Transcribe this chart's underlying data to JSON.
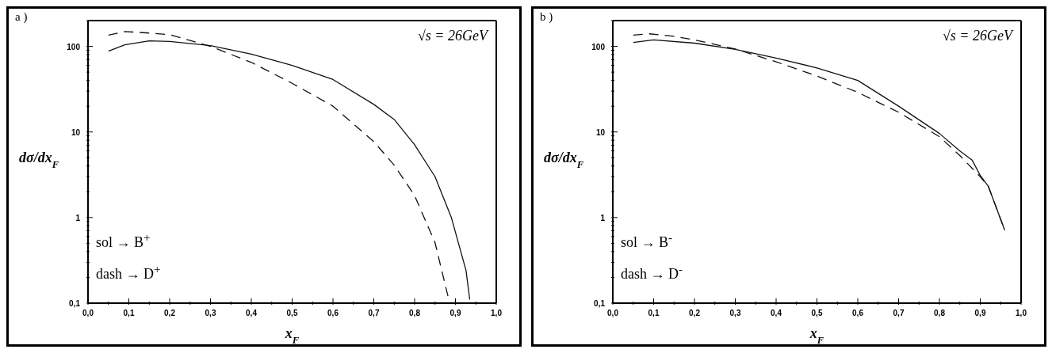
{
  "chart_data": [
    {
      "type": "line",
      "title": "a )",
      "xlabel": "x$_{F}$",
      "ylabel": "dσ/dx$_{F}$",
      "log": "y",
      "marker": "none",
      "xlim": [
        0,
        1
      ],
      "ylim": [
        0.1,
        200
      ],
      "xticks": [
        {
          "value": 0,
          "label": "0,0"
        },
        {
          "value": 0.05,
          "label": null
        },
        {
          "value": 0.1,
          "label": "0,1"
        },
        {
          "value": 0.15,
          "label": null
        },
        {
          "value": 0.2,
          "label": "0,2"
        },
        {
          "value": 0.25,
          "label": null
        },
        {
          "value": 0.3,
          "label": "0,3"
        },
        {
          "value": 0.35,
          "label": null
        },
        {
          "value": 0.4,
          "label": "0,4"
        },
        {
          "value": 0.45,
          "label": null
        },
        {
          "value": 0.5,
          "label": "0,5"
        },
        {
          "value": 0.55,
          "label": null
        },
        {
          "value": 0.6,
          "label": "0,6"
        },
        {
          "value": 0.65,
          "label": null
        },
        {
          "value": 0.7,
          "label": "0,7"
        },
        {
          "value": 0.75,
          "label": null
        },
        {
          "value": 0.8,
          "label": "0,8"
        },
        {
          "value": 0.85,
          "label": null
        },
        {
          "value": 0.9,
          "label": "0,9"
        },
        {
          "value": 0.95,
          "label": null
        },
        {
          "value": 1,
          "label": "1,0"
        }
      ],
      "yticks": [
        {
          "value": 0.1,
          "label": "0,1"
        },
        {
          "value": 0.2,
          "label": null
        },
        {
          "value": 0.3,
          "label": null
        },
        {
          "value": 0.4,
          "label": null
        },
        {
          "value": 0.5,
          "label": null
        },
        {
          "value": 0.6,
          "label": null
        },
        {
          "value": 0.7,
          "label": null
        },
        {
          "value": 0.8,
          "label": null
        },
        {
          "value": 0.9,
          "label": null
        },
        1,
        {
          "value": 2,
          "label": null
        },
        {
          "value": 3,
          "label": null
        },
        {
          "value": 4,
          "label": null
        },
        {
          "value": 5,
          "label": null
        },
        {
          "value": 6,
          "label": null
        },
        {
          "value": 7,
          "label": null
        },
        {
          "value": 8,
          "label": null
        },
        {
          "value": 9,
          "label": null
        },
        10,
        {
          "value": 20,
          "label": null
        },
        {
          "value": 30,
          "label": null
        },
        {
          "value": 40,
          "label": null
        },
        {
          "value": 50,
          "label": null
        },
        {
          "value": 60,
          "label": null
        },
        {
          "value": 70,
          "label": null
        },
        {
          "value": 80,
          "label": null
        },
        {
          "value": 90,
          "label": null
        },
        100,
        {
          "value": 200,
          "label": null
        }
      ],
      "annotations": [
        "√s = 26GeV",
        "sol → B$^{+}$",
        "dash → D$^{+}$"
      ],
      "series": [
        {
          "color": "#111111",
          "line_style": "solid",
          "x": [
            0.05,
            0.09,
            0.15,
            0.2,
            0.3,
            0.4,
            0.5,
            0.6,
            0.7,
            0.75,
            0.8,
            0.85,
            0.89,
            0.926,
            0.935
          ],
          "values": [
            88,
            104,
            116,
            114,
            102,
            81,
            60,
            41,
            21,
            14,
            7.1,
            3,
            1,
            0.24,
            0.11
          ]
        },
        {
          "color": "#111111",
          "line_style": "dashed",
          "x": [
            0.05,
            0.09,
            0.15,
            0.2,
            0.25,
            0.3,
            0.4,
            0.5,
            0.6,
            0.7,
            0.75,
            0.8,
            0.85,
            0.88,
            0.885
          ],
          "values": [
            135,
            149,
            143,
            137,
            117,
            100,
            65,
            37,
            20,
            7.7,
            4.1,
            1.8,
            0.51,
            0.13,
            0.104
          ]
        }
      ]
    },
    {
      "type": "line",
      "title": "b )",
      "xlabel": "x$_{F}$",
      "ylabel": "dσ/dx$_{F}$",
      "log": "y",
      "marker": "none",
      "xlim": [
        0,
        1
      ],
      "ylim": [
        0.1,
        200
      ],
      "xticks": [
        {
          "value": 0,
          "label": "0,0"
        },
        {
          "value": 0.05,
          "label": null
        },
        {
          "value": 0.1,
          "label": "0,1"
        },
        {
          "value": 0.15,
          "label": null
        },
        {
          "value": 0.2,
          "label": "0,2"
        },
        {
          "value": 0.25,
          "label": null
        },
        {
          "value": 0.3,
          "label": "0,3"
        },
        {
          "value": 0.35,
          "label": null
        },
        {
          "value": 0.4,
          "label": "0,4"
        },
        {
          "value": 0.45,
          "label": null
        },
        {
          "value": 0.5,
          "label": "0,5"
        },
        {
          "value": 0.55,
          "label": null
        },
        {
          "value": 0.6,
          "label": "0,6"
        },
        {
          "value": 0.65,
          "label": null
        },
        {
          "value": 0.7,
          "label": "0,7"
        },
        {
          "value": 0.75,
          "label": null
        },
        {
          "value": 0.8,
          "label": "0,8"
        },
        {
          "value": 0.85,
          "label": null
        },
        {
          "value": 0.9,
          "label": "0,9"
        },
        {
          "value": 0.95,
          "label": null
        },
        {
          "value": 1,
          "label": "1,0"
        }
      ],
      "yticks": [
        {
          "value": 0.1,
          "label": "0,1"
        },
        {
          "value": 0.2,
          "label": null
        },
        {
          "value": 0.3,
          "label": null
        },
        {
          "value": 0.4,
          "label": null
        },
        {
          "value": 0.5,
          "label": null
        },
        {
          "value": 0.6,
          "label": null
        },
        {
          "value": 0.7,
          "label": null
        },
        {
          "value": 0.8,
          "label": null
        },
        {
          "value": 0.9,
          "label": null
        },
        1,
        {
          "value": 2,
          "label": null
        },
        {
          "value": 3,
          "label": null
        },
        {
          "value": 4,
          "label": null
        },
        {
          "value": 5,
          "label": null
        },
        {
          "value": 6,
          "label": null
        },
        {
          "value": 7,
          "label": null
        },
        {
          "value": 8,
          "label": null
        },
        {
          "value": 9,
          "label": null
        },
        10,
        {
          "value": 20,
          "label": null
        },
        {
          "value": 30,
          "label": null
        },
        {
          "value": 40,
          "label": null
        },
        {
          "value": 50,
          "label": null
        },
        {
          "value": 60,
          "label": null
        },
        {
          "value": 70,
          "label": null
        },
        {
          "value": 80,
          "label": null
        },
        {
          "value": 90,
          "label": null
        },
        100,
        {
          "value": 200,
          "label": null
        }
      ],
      "annotations": [
        "√s = 26GeV",
        "sol → B$^{-}$",
        "dash → D$^{-}$"
      ],
      "series": [
        {
          "color": "#111111",
          "line_style": "solid",
          "x": [
            0.05,
            0.1,
            0.2,
            0.3,
            0.4,
            0.5,
            0.6,
            0.7,
            0.8,
            0.85,
            0.88,
            0.9,
            0.92,
            0.96
          ],
          "values": [
            111,
            119,
            109,
            92,
            73,
            56,
            40,
            20,
            9.6,
            6,
            4.7,
            3.1,
            2.3,
            0.71
          ]
        },
        {
          "color": "#111111",
          "line_style": "dashed",
          "x": [
            0.05,
            0.09,
            0.15,
            0.2,
            0.3,
            0.4,
            0.5,
            0.6,
            0.7,
            0.8,
            0.85,
            0.9,
            0.92,
            0.96
          ],
          "values": [
            135,
            140,
            131,
            119,
            93,
            66,
            45,
            29,
            17,
            8.8,
            5.3,
            3,
            2.3,
            0.71
          ]
        }
      ]
    }
  ]
}
